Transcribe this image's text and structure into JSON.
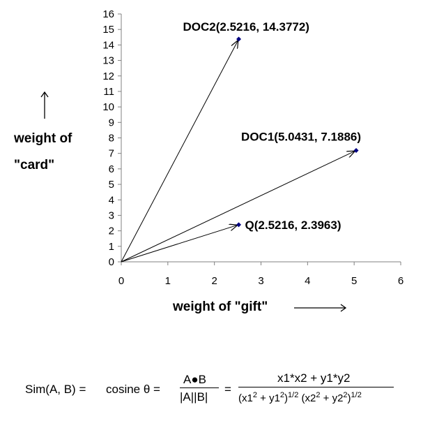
{
  "chart_data": {
    "type": "scatter",
    "xlabel": "weight of \"gift\"",
    "ylabel": [
      "weight of",
      "\"card\""
    ],
    "xlim": [
      0,
      6
    ],
    "ylim": [
      0,
      16
    ],
    "xticks": [
      0,
      1,
      2,
      3,
      4,
      5,
      6
    ],
    "yticks": [
      0,
      1,
      2,
      3,
      4,
      5,
      6,
      7,
      8,
      9,
      10,
      11,
      12,
      13,
      14,
      15,
      16
    ],
    "grid": false,
    "points": [
      {
        "label": "DOC2(2.5216, 14.3772)",
        "x": 2.5216,
        "y": 14.3772
      },
      {
        "label": "DOC1(5.0431, 7.1886)",
        "x": 5.0431,
        "y": 7.1886
      },
      {
        "label": "Q(2.5216, 2.3963)",
        "x": 2.5216,
        "y": 2.3963
      }
    ],
    "vectors_from_origin": true,
    "colors": {
      "axis": "#808080",
      "marker": "#000080",
      "vector": "#000000"
    }
  },
  "formula": {
    "lhs": "Sim(A, B) =",
    "cosine": "cosine θ =",
    "frac1_num": "A●B",
    "frac1_den": "|A||B|",
    "eq2": "=",
    "frac2_num": "x1*x2 + y1*y2",
    "den_a": "(x1",
    "den_b": " + y1",
    "den_c": ")",
    "den_d": "  (x2",
    "den_e": " + y2",
    "den_f": ")",
    "exp_two": "2",
    "exp_half": "1/2"
  }
}
